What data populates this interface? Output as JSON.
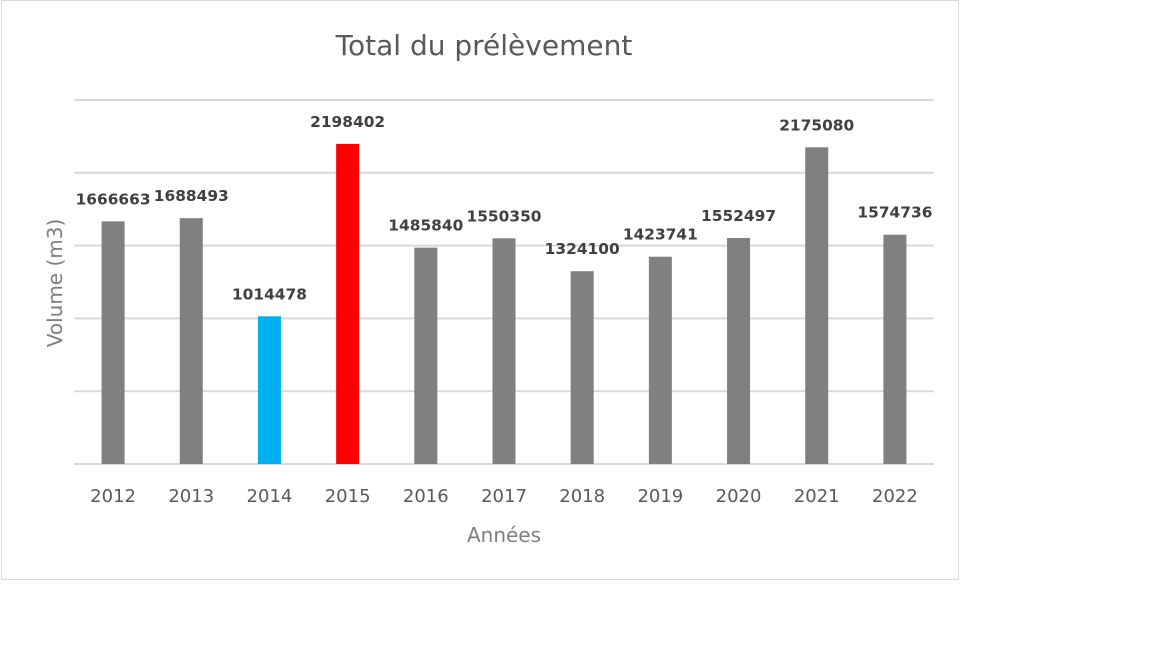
{
  "chart_data": {
    "type": "bar",
    "title": "Total du prélèvement",
    "xlabel": "Années",
    "ylabel": "Volume (m3)",
    "categories": [
      "2012",
      "2013",
      "2014",
      "2015",
      "2016",
      "2017",
      "2018",
      "2019",
      "2020",
      "2021",
      "2022"
    ],
    "values": [
      1666663,
      1688493,
      1014478,
      2198402,
      1485840,
      1550350,
      1324100,
      1423741,
      1552497,
      2175080,
      1574736
    ],
    "value_labels": [
      "1666663",
      "1688493",
      "1014478",
      "2198402",
      "1485840",
      "1550350",
      "1324100",
      "1423741",
      "1552497",
      "2175080",
      "1574736"
    ],
    "colors": [
      "#808080",
      "#808080",
      "#00B0F0",
      "#FF0000",
      "#808080",
      "#808080",
      "#808080",
      "#808080",
      "#808080",
      "#808080",
      "#808080"
    ],
    "ylim": [
      0,
      2500000
    ],
    "ytick_step": 500000,
    "grid": true,
    "y_tick_labels_shown": false,
    "legend": false
  }
}
